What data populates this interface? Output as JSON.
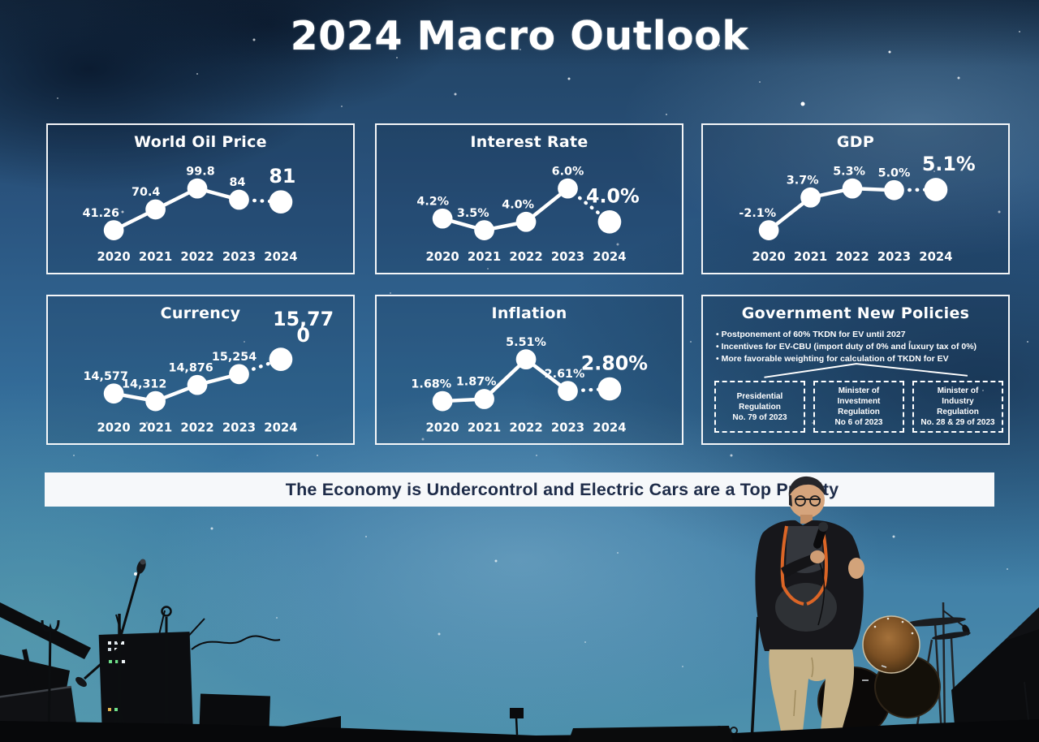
{
  "slide": {
    "title": "2024 Macro Outlook",
    "banner_text": "The Economy is Undercontrol and Electric Cars are a Top Priority"
  },
  "chart_data": [
    {
      "type": "line",
      "title": "World Oil Price",
      "categories": [
        "2020",
        "2021",
        "2022",
        "2023",
        "2024"
      ],
      "values": [
        41.26,
        70.4,
        99.8,
        84,
        81
      ],
      "labels": [
        "41.26",
        "70.4",
        "99.8",
        "84",
        "81"
      ],
      "dotted_last_segment": true,
      "label_dx": [
        -16,
        -12,
        4,
        -2,
        2
      ],
      "label_dy": [
        0,
        0,
        0,
        0,
        0
      ],
      "legend_position": "none",
      "grid": false
    },
    {
      "type": "line",
      "title": "Interest Rate",
      "categories": [
        "2020",
        "2021",
        "2022",
        "2023",
        "2024"
      ],
      "values": [
        4.2,
        3.5,
        4.0,
        6.0,
        4.0
      ],
      "labels": [
        "4.2%",
        "3.5%",
        "4.0%",
        "6.0%",
        "4.0%"
      ],
      "dotted_last_segment": true,
      "label_dx": [
        -12,
        -14,
        -10,
        0,
        4
      ],
      "label_dy": [
        0,
        0,
        0,
        0,
        0
      ],
      "legend_position": "none",
      "grid": false
    },
    {
      "type": "line",
      "title": "GDP",
      "categories": [
        "2020",
        "2021",
        "2022",
        "2023",
        "2024"
      ],
      "values": [
        -2.1,
        3.7,
        5.3,
        5.0,
        5.1
      ],
      "labels": [
        "-2.1%",
        "3.7%",
        "5.3%",
        "5.0%",
        "5.1%"
      ],
      "dotted_last_segment": true,
      "label_dx": [
        -14,
        -10,
        -4,
        0,
        16
      ],
      "label_dy": [
        0,
        0,
        0,
        0,
        0
      ],
      "legend_position": "none",
      "grid": false
    },
    {
      "type": "line",
      "title": "Currency",
      "categories": [
        "2020",
        "2021",
        "2022",
        "2023",
        "2024"
      ],
      "values": [
        14577,
        14312,
        14876,
        15254,
        15770
      ],
      "labels": [
        "14,577",
        "14,312",
        "14,876",
        "15,254",
        "15,77\n0"
      ],
      "dotted_last_segment": true,
      "label_dx": [
        -10,
        -14,
        -8,
        -6,
        28
      ],
      "label_dy": [
        0,
        0,
        0,
        0,
        -18
      ],
      "legend_position": "none",
      "grid": false
    },
    {
      "type": "line",
      "title": "Inflation",
      "categories": [
        "2020",
        "2021",
        "2022",
        "2023",
        "2024"
      ],
      "values": [
        1.68,
        1.87,
        5.51,
        2.61,
        2.8
      ],
      "labels": [
        "1.68%",
        "1.87%",
        "5.51%",
        "2.61%",
        "2.80%"
      ],
      "dotted_last_segment": true,
      "label_dx": [
        -14,
        -10,
        0,
        -4,
        6
      ],
      "label_dy": [
        0,
        0,
        0,
        0,
        0
      ],
      "legend_position": "none",
      "grid": false
    }
  ],
  "policies": {
    "title": "Government New Policies",
    "bullets": [
      "Postponement of 60% TKDN for EV until 2027",
      "Incentives for EV-CBU (import duty of 0% and luxury tax of 0%)",
      "More favorable weighting for calculation of TKDN for EV"
    ],
    "regulations": [
      "Presidential\nRegulation\nNo. 79 of 2023",
      "Minister of\nInvestment\nRegulation\nNo 6 of 2023",
      "Minister of\nIndustry\nRegulation\nNo. 28 & 29 of 2023"
    ]
  },
  "colors": {
    "sky_blue": "#31689a",
    "deep_navy": "#14273f",
    "slide_white": "#ffffff",
    "banner_bg": "#f6f8fa",
    "banner_text": "#1e2c49",
    "jacket_trim_orange": "#db6526",
    "drum_bronze": "#8a5a2a"
  }
}
